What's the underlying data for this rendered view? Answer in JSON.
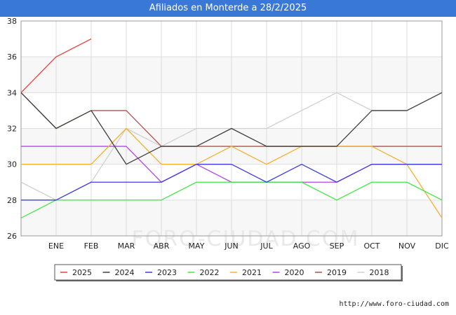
{
  "header": {
    "title": "Afiliados en Monterde a 28/2/2025"
  },
  "footer": {
    "url": "http://www.foro-ciudad.com"
  },
  "watermark": "FORO-CIUDAD.COM",
  "chart_data": {
    "type": "line",
    "title": "Afiliados en Monterde a 28/2/2025",
    "xlabel": "",
    "ylabel": "",
    "x_ticks": [
      "",
      "ENE",
      "FEB",
      "MAR",
      "ABR",
      "MAY",
      "JUN",
      "JUL",
      "AGO",
      "SEP",
      "OCT",
      "NOV",
      "DIC"
    ],
    "y_ticks": [
      26,
      28,
      30,
      32,
      34,
      36,
      38
    ],
    "ylim": [
      26,
      38
    ],
    "grid": true,
    "legend_position": "bottom",
    "series": [
      {
        "name": "2018",
        "color": "#d0d0d0",
        "values": [
          29,
          28,
          29,
          32,
          31,
          32,
          32,
          32,
          33,
          34,
          33,
          33,
          34
        ]
      },
      {
        "name": "2019",
        "color": "#b05050",
        "values": [
          34,
          32,
          33,
          33,
          31,
          31,
          31,
          31,
          31,
          31,
          31,
          31,
          31
        ]
      },
      {
        "name": "2020",
        "color": "#b444e8",
        "values": [
          31,
          31,
          31,
          31,
          29,
          30,
          29,
          29,
          29,
          29,
          30,
          30,
          30
        ]
      },
      {
        "name": "2021",
        "color": "#f5b030",
        "values": [
          30,
          30,
          30,
          32,
          30,
          30,
          31,
          30,
          31,
          31,
          31,
          30,
          27
        ]
      },
      {
        "name": "2022",
        "color": "#44e844",
        "values": [
          27,
          28,
          28,
          28,
          28,
          29,
          29,
          29,
          29,
          28,
          29,
          29,
          28
        ]
      },
      {
        "name": "2023",
        "color": "#3c3ce0",
        "values": [
          28,
          28,
          29,
          29,
          29,
          30,
          30,
          29,
          30,
          29,
          30,
          30,
          30
        ]
      },
      {
        "name": "2024",
        "color": "#404040",
        "values": [
          34,
          32,
          33,
          30,
          31,
          31,
          32,
          31,
          31,
          31,
          33,
          33,
          34
        ]
      },
      {
        "name": "2025",
        "color": "#e84040",
        "values": [
          34,
          36,
          37
        ]
      }
    ],
    "legend_order": [
      "2025",
      "2024",
      "2023",
      "2022",
      "2021",
      "2020",
      "2019",
      "2018"
    ]
  }
}
